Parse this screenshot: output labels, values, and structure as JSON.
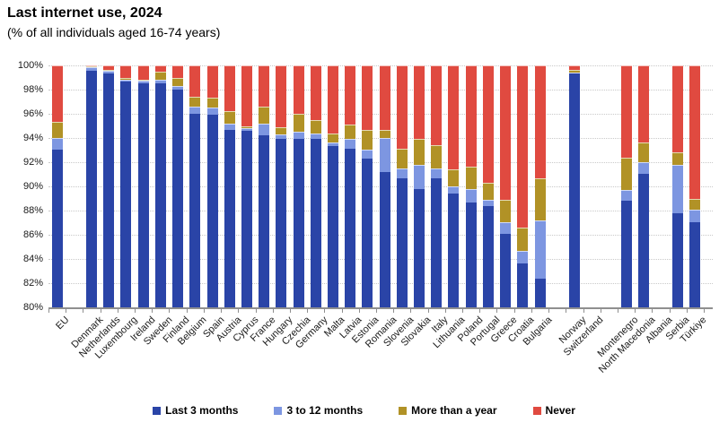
{
  "title": "Last internet use, 2024",
  "subtitle": "(% of all individuals aged 16-74 years)",
  "chart_data": {
    "type": "bar",
    "stacked": true,
    "title": "Last internet use, 2024",
    "subtitle": "(% of all individuals aged 16-74 years)",
    "ylabel": "",
    "xlabel": "",
    "ylim": [
      80,
      100
    ],
    "ytick_step": 2,
    "ytick_suffix": "%",
    "grid": true,
    "legend_position": "bottom",
    "categories": [
      "EU",
      "",
      "Denmark",
      "Netherlands",
      "Luxembourg",
      "Ireland",
      "Sweden",
      "Finland",
      "Belgium",
      "Spain",
      "Austria",
      "Cyprus",
      "France",
      "Hungary",
      "Czechia",
      "Germany",
      "Malta",
      "Latvia",
      "Estonia",
      "Romania",
      "Slovenia",
      "Slovakia",
      "Italy",
      "Lithuania",
      "Poland",
      "Portugal",
      "Greece",
      "Croatia",
      "Bulgaria",
      "",
      "Norway",
      "Switzerland",
      "",
      "Montenegro",
      "North Macedonia",
      "Albania",
      "Serbia",
      "Türkiye"
    ],
    "no_data_categories": [
      "Switzerland",
      "Albania"
    ],
    "series": [
      {
        "name": "Last 3 months",
        "color": "#2a44a7",
        "values": [
          93.0,
          null,
          99.7,
          99.4,
          98.7,
          98.6,
          98.5,
          98.0,
          96.0,
          95.9,
          94.7,
          94.6,
          94.2,
          93.9,
          93.9,
          93.9,
          93.3,
          93.1,
          92.3,
          91.2,
          90.7,
          89.8,
          90.7,
          89.4,
          88.7,
          88.4,
          86.1,
          83.6,
          82.4,
          null,
          99.3,
          null,
          null,
          88.8,
          91.0,
          null,
          87.8,
          87.0
        ]
      },
      {
        "name": "3 to 12 months",
        "color": "#7d96e1",
        "values": [
          1.0,
          null,
          0.3,
          0.2,
          0.1,
          0.2,
          0.3,
          0.3,
          0.6,
          0.6,
          0.5,
          0.2,
          1.0,
          0.4,
          0.6,
          0.5,
          0.3,
          0.8,
          0.7,
          2.8,
          0.8,
          2.0,
          0.8,
          0.6,
          1.1,
          0.5,
          0.9,
          1.1,
          4.8,
          null,
          0.1,
          null,
          null,
          0.9,
          1.0,
          null,
          4.0,
          1.1
        ]
      },
      {
        "name": "More than a year",
        "color": "#b19226",
        "values": [
          1.3,
          null,
          0.0,
          0.0,
          0.2,
          0.0,
          0.7,
          0.7,
          0.8,
          0.8,
          1.0,
          0.2,
          1.4,
          0.6,
          1.5,
          1.1,
          0.8,
          1.2,
          1.7,
          0.7,
          1.6,
          2.1,
          1.9,
          1.4,
          1.8,
          1.4,
          1.9,
          1.9,
          3.5,
          null,
          0.2,
          null,
          null,
          2.7,
          1.6,
          null,
          1.0,
          0.9
        ]
      },
      {
        "name": "Never",
        "color": "#e04a40",
        "values": [
          4.7,
          null,
          0.0,
          0.4,
          1.0,
          1.2,
          0.5,
          1.0,
          2.6,
          2.7,
          3.8,
          5.0,
          3.4,
          5.1,
          4.0,
          4.5,
          5.6,
          4.9,
          5.3,
          5.3,
          6.9,
          6.1,
          6.6,
          8.6,
          8.4,
          9.7,
          11.1,
          13.4,
          9.3,
          null,
          0.4,
          null,
          null,
          7.6,
          6.4,
          null,
          7.2,
          11.0
        ]
      }
    ]
  }
}
